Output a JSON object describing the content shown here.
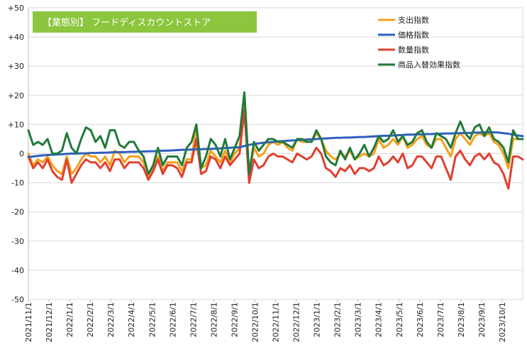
{
  "chart_data": {
    "type": "line",
    "title": "【業態別】 フードディスカウントストア",
    "title_bg_color": "#8cc63e",
    "xlabel": "",
    "ylabel": "",
    "ylim": [
      -50,
      50
    ],
    "y_ticks": [
      50,
      40,
      30,
      20,
      10,
      0,
      -10,
      -20,
      -30,
      -40,
      -50
    ],
    "y_tick_labels": [
      "+50",
      "+40",
      "+30",
      "+20",
      "+10",
      "0",
      "-10",
      "-20",
      "-30",
      "-40",
      "-50"
    ],
    "x_tick_labels": [
      "2021/11/1",
      "2021/12/1",
      "2022/1/1",
      "2022/2/1",
      "2022/3/1",
      "2022/4/1",
      "2022/5/1",
      "2022/6/1",
      "2022/7/1",
      "2022/8/1",
      "2022/9/1",
      "2022/10/1",
      "2022/11/1",
      "2022/12/1",
      "2023/1/1",
      "2023/2/1",
      "2023/3/1",
      "2023/4/1",
      "2023/5/1",
      "2023/6/1",
      "2023/7/1",
      "2023/8/1",
      "2023/9/1",
      "2023/10/1"
    ],
    "grid": true,
    "legend_position": "top-right",
    "x": [
      0,
      1,
      2,
      3,
      4,
      5,
      6,
      7,
      8,
      9,
      10,
      11,
      12,
      13,
      14,
      15,
      16,
      17,
      18,
      19,
      20,
      21,
      22,
      23,
      24,
      25,
      26,
      27,
      28,
      29,
      30,
      31,
      32,
      33,
      34,
      35,
      36,
      37,
      38,
      39,
      40,
      41,
      42,
      43,
      44,
      45,
      46,
      47,
      48,
      49,
      50,
      51,
      52,
      53,
      54,
      55,
      56,
      57,
      58,
      59,
      60,
      61,
      62,
      63,
      64,
      65,
      66,
      67,
      68,
      69,
      70,
      71,
      72,
      73,
      74,
      75,
      76,
      77,
      78,
      79,
      80,
      81,
      82,
      83,
      84,
      85,
      86,
      87,
      88,
      89,
      90,
      91,
      92,
      93,
      94,
      95,
      96,
      97,
      98,
      99,
      100,
      101,
      102,
      103
    ],
    "series": [
      {
        "name": "支出指数",
        "color": "#f5a01a",
        "values": [
          0,
          -4,
          -2,
          -3,
          -1,
          -4,
          -6,
          -7,
          -1,
          -7,
          -5,
          -2,
          0,
          -1,
          -1,
          -3,
          -1,
          -4,
          1,
          0,
          -3,
          -1,
          -1,
          -1,
          -3,
          -8,
          -5,
          -1,
          -6,
          -3,
          -3,
          -3,
          -6,
          -2,
          -2,
          9,
          -5,
          -4,
          1,
          -1,
          -3,
          1,
          -3,
          0,
          2,
          16,
          -7,
          2,
          -1,
          0,
          3,
          4,
          3,
          4,
          2,
          1,
          5,
          4,
          4,
          4,
          7,
          5,
          1,
          -1,
          -2,
          0,
          -1,
          1,
          -2,
          -1,
          0,
          -1,
          0,
          5,
          2,
          3,
          5,
          3,
          6,
          2,
          3,
          5,
          6,
          3,
          2,
          5,
          5,
          2,
          -1,
          5,
          7,
          5,
          3,
          6,
          7,
          6,
          7,
          4,
          3,
          0,
          -5,
          5,
          5,
          5
        ]
      },
      {
        "name": "価格指数",
        "color": "#2f5fbf",
        "values": [
          -1.2,
          -1.0,
          -0.8,
          -0.6,
          -0.5,
          -0.4,
          -0.3,
          -0.2,
          -0.1,
          0.0,
          0.0,
          0.1,
          0.1,
          0.2,
          0.2,
          0.3,
          0.3,
          0.4,
          0.5,
          0.5,
          0.5,
          0.6,
          0.6,
          0.7,
          0.7,
          0.8,
          0.8,
          0.9,
          1.0,
          1.0,
          1.1,
          1.2,
          1.3,
          1.3,
          1.4,
          1.5,
          1.5,
          1.6,
          1.6,
          1.7,
          1.8,
          1.9,
          2.0,
          2.1,
          2.2,
          2.6,
          3.0,
          3.3,
          3.5,
          3.7,
          3.9,
          4.0,
          4.2,
          4.3,
          4.4,
          4.5,
          4.6,
          4.7,
          4.8,
          4.9,
          5.0,
          5.1,
          5.2,
          5.3,
          5.4,
          5.4,
          5.5,
          5.5,
          5.6,
          5.7,
          5.7,
          5.8,
          5.9,
          6.0,
          6.1,
          6.1,
          6.2,
          6.3,
          6.4,
          6.5,
          6.5,
          6.6,
          6.6,
          6.7,
          6.7,
          6.8,
          6.8,
          6.9,
          6.9,
          7.0,
          7.0,
          7.1,
          7.1,
          7.2,
          7.2,
          7.3,
          7.3,
          7.3,
          7.2,
          7.0,
          6.8,
          6.5,
          6.2,
          6.0
        ]
      },
      {
        "name": "数量指数",
        "color": "#e04030",
        "values": [
          -1,
          -5,
          -3,
          -5,
          -2,
          -6,
          -8,
          -9,
          -2,
          -10,
          -7,
          -4,
          -2,
          -3,
          -3,
          -5,
          -3,
          -6,
          -2,
          -2,
          -5,
          -3,
          -3,
          -3,
          -5,
          -9,
          -6,
          -2,
          -7,
          -4,
          -4,
          -5,
          -8,
          -3,
          -3,
          5,
          -7,
          -6,
          -1,
          -2,
          -5,
          -1,
          -4,
          -2,
          0,
          15,
          -10,
          -2,
          -5,
          -4,
          -1,
          0,
          -1,
          -1,
          -2,
          -3,
          0,
          -1,
          -2,
          -1,
          2,
          0,
          -5,
          -6,
          -8,
          -5,
          -6,
          -4,
          -7,
          -5,
          -5,
          -6,
          -5,
          -1,
          -4,
          -3,
          -1,
          -3,
          0,
          -5,
          -4,
          -1,
          -1,
          -3,
          -5,
          -1,
          -1,
          -5,
          -9,
          -1,
          1,
          -2,
          -4,
          -1,
          0,
          -2,
          0,
          -3,
          -4,
          -7,
          -12,
          -1,
          -1,
          -2
        ]
      },
      {
        "name": "商品入替効果指数",
        "color": "#217a3a",
        "values": [
          8,
          3,
          4,
          3,
          5,
          0,
          0,
          1,
          7,
          2,
          0,
          5,
          9,
          8,
          4,
          6,
          2,
          8,
          8,
          3,
          2,
          4,
          4,
          1,
          -1,
          -7,
          -4,
          2,
          -4,
          -1,
          -1,
          -1,
          -4,
          2,
          4,
          10,
          -5,
          -1,
          5,
          3,
          -1,
          5,
          -2,
          2,
          6,
          21,
          -7,
          4,
          1,
          3,
          5,
          5,
          4,
          4,
          3,
          2,
          5,
          5,
          4,
          4,
          8,
          5,
          -1,
          -3,
          -4,
          1,
          -2,
          2,
          -2,
          0,
          3,
          -1,
          2,
          6,
          4,
          5,
          8,
          4,
          6,
          3,
          4,
          7,
          8,
          4,
          2,
          7,
          6,
          5,
          2,
          7,
          11,
          7,
          5,
          9,
          10,
          6,
          9,
          5,
          4,
          2,
          -3,
          8,
          5,
          5
        ]
      }
    ]
  }
}
